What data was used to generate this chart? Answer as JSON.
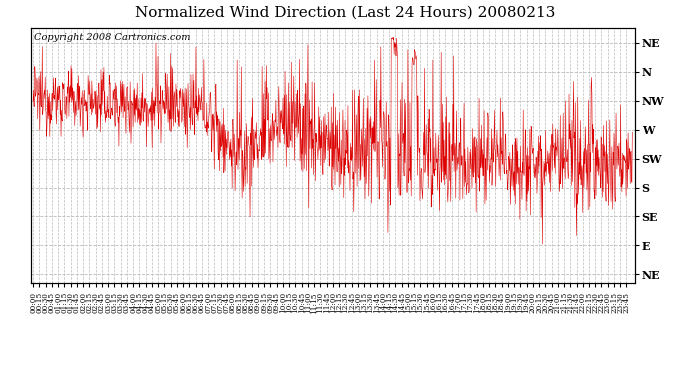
{
  "title": "Normalized Wind Direction (Last 24 Hours) 20080213",
  "copyright_text": "Copyright 2008 Cartronics.com",
  "line_color": "#dd0000",
  "bg_color": "#ffffff",
  "plot_bg_color": "#ffffff",
  "grid_color": "#bbbbbb",
  "ytick_labels": [
    "NE",
    "N",
    "NW",
    "W",
    "SW",
    "S",
    "SE",
    "E",
    "NE"
  ],
  "ytick_values": [
    8,
    7,
    6,
    5,
    4,
    3,
    2,
    1,
    0
  ],
  "ylim": [
    -0.3,
    8.5
  ],
  "title_fontsize": 11,
  "copyright_fontsize": 7,
  "seed": 12345,
  "n_points": 1440,
  "figsize": [
    6.9,
    3.75
  ],
  "dpi": 100
}
